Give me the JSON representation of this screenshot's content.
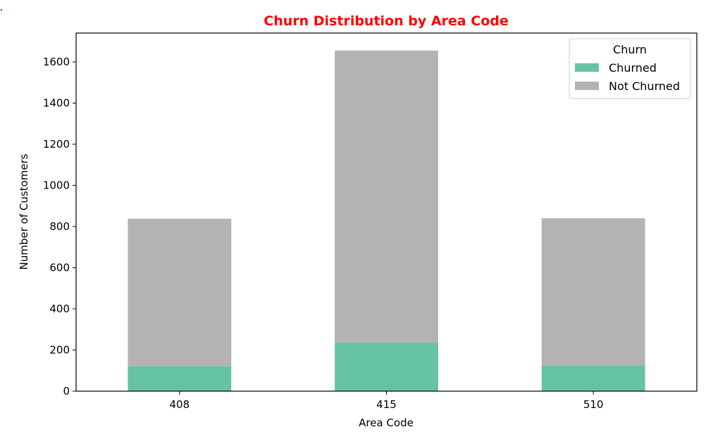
{
  "chart_data": {
    "type": "bar",
    "stacked": true,
    "title": "Churn Distribution by Area Code",
    "xlabel": "Area Code",
    "ylabel": "Number of Customers",
    "categories": [
      "408",
      "415",
      "510"
    ],
    "series": [
      {
        "name": "Churned",
        "values": [
          122,
          236,
          125
        ],
        "color": "#66c2a5"
      },
      {
        "name": "Not Churned",
        "values": [
          716,
          1419,
          715
        ],
        "color": "#b3b3b3"
      }
    ],
    "ylim": [
      0,
      1740
    ],
    "yticks": [
      0,
      200,
      400,
      600,
      800,
      1000,
      1200,
      1400,
      1600
    ],
    "grid": false,
    "legend": {
      "title": "Churn",
      "placement": "top-right"
    },
    "title_color": "#ff0000"
  }
}
